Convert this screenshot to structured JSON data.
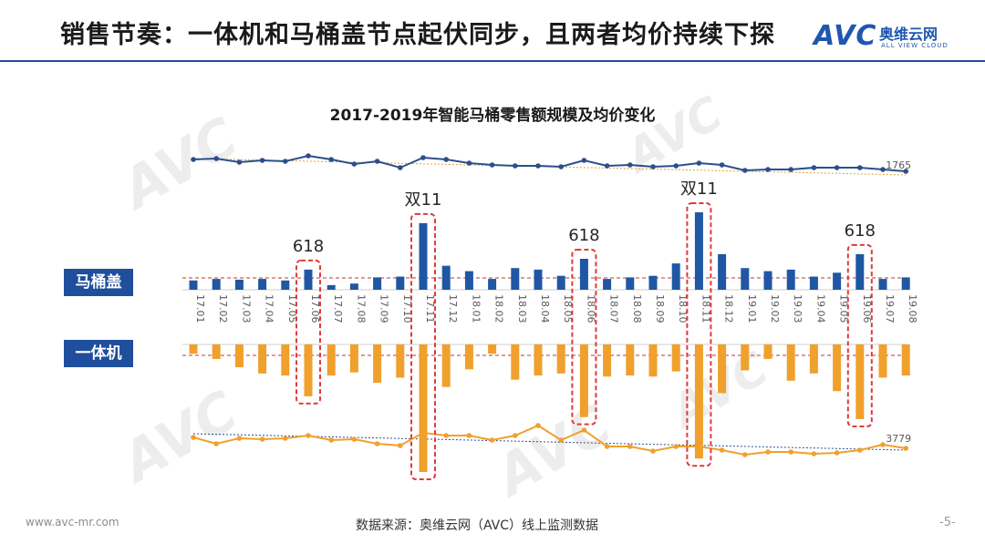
{
  "slide": {
    "title": "销售节奏：一体机和马桶盖节点起伏同步，且两者均价持续下探",
    "logo_brand": "AVC",
    "logo_cn": "奥维云网",
    "logo_en": "ALL VIEW CLOUD",
    "footer_url": "www.avc-mr.com",
    "footer_source": "数据来源：奥维云网（AVC）线上监测数据",
    "page_number": "-5-"
  },
  "colors": {
    "cover_bar": "#1f57a4",
    "cover_price_line": "#2b4f8c",
    "integrated_bar": "#f0a02c",
    "integrated_price_line": "#f0a02c",
    "highlight_box": "#e03a3a",
    "trend_cover": "#e0a030",
    "trend_integrated": "#2b4f8c",
    "title_line": "#1f4e9c"
  },
  "chart_data": {
    "type": "bar",
    "title": "2017-2019年智能马桶零售额规模及均价变化",
    "categories": [
      "17.01",
      "17.02",
      "17.03",
      "17.04",
      "17.05",
      "17.06",
      "17.07",
      "17.08",
      "17.09",
      "17.10",
      "17.11",
      "17.12",
      "18.01",
      "18.02",
      "18.03",
      "18.04",
      "18.05",
      "18.06",
      "18.07",
      "18.08",
      "18.09",
      "18.10",
      "18.11",
      "18.12",
      "19.01",
      "19.02",
      "19.03",
      "19.04",
      "19.05",
      "19.06",
      "19.07",
      "19.08"
    ],
    "series": [
      {
        "name": "马桶盖",
        "kind": "bar",
        "values": [
          12,
          14,
          13,
          14,
          12,
          26,
          6,
          8,
          16,
          17,
          86,
          31,
          24,
          14,
          28,
          26,
          18,
          40,
          14,
          16,
          18,
          34,
          100,
          46,
          28,
          24,
          26,
          17,
          22,
          46,
          14,
          16
        ]
      },
      {
        "name": "一体机",
        "kind": "bar",
        "values": [
          9,
          14,
          22,
          28,
          30,
          50,
          30,
          27,
          37,
          32,
          123,
          41,
          24,
          9,
          34,
          30,
          28,
          70,
          31,
          30,
          31,
          26,
          110,
          47,
          25,
          14,
          35,
          28,
          45,
          72,
          32,
          30
        ]
      }
    ],
    "price_lines": {
      "cover_avg_price": {
        "values": [
          77,
          78,
          74,
          76,
          75,
          81,
          77,
          72,
          75,
          68,
          79,
          77,
          73,
          71,
          70,
          70,
          69,
          76,
          70,
          71,
          69,
          70,
          73,
          71,
          65,
          66,
          66,
          68,
          68,
          68,
          66,
          64
        ],
        "last_label": "1765"
      },
      "integrated_avg_price": {
        "values": [
          77,
          70,
          76,
          75,
          76,
          79,
          74,
          75,
          70,
          68,
          82,
          79,
          79,
          74,
          79,
          90,
          74,
          85,
          67,
          67,
          62,
          67,
          67,
          63,
          58,
          61,
          61,
          59,
          60,
          63,
          69,
          65
        ],
        "last_label": "3779"
      }
    },
    "annotations": [
      {
        "label": "618",
        "categories": [
          "17.06"
        ]
      },
      {
        "label": "双11",
        "categories": [
          "17.11"
        ]
      },
      {
        "label": "618",
        "categories": [
          "18.06"
        ]
      },
      {
        "label": "双11",
        "categories": [
          "18.11"
        ]
      },
      {
        "label": "618",
        "categories": [
          "19.06"
        ]
      }
    ],
    "legend": [
      "马桶盖",
      "一体机"
    ],
    "xlabel": "",
    "ylabel": ""
  }
}
